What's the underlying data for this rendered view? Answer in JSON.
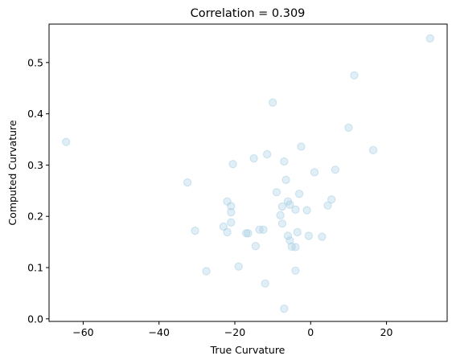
{
  "chart_data": {
    "type": "scatter",
    "title": "Correlation = 0.309",
    "xlabel": "True Curvature",
    "ylabel": "Computed Curvature",
    "xlim": [
      -69,
      36
    ],
    "ylim": [
      -0.005,
      0.575
    ],
    "xticks": [
      -60,
      -40,
      -20,
      0,
      20
    ],
    "yticks": [
      0.0,
      0.1,
      0.2,
      0.3,
      0.4,
      0.5
    ],
    "xtick_labels": [
      "−60",
      "−40",
      "−20",
      "0",
      "20"
    ],
    "ytick_labels": [
      "0.0",
      "0.1",
      "0.2",
      "0.3",
      "0.4",
      "0.5"
    ],
    "grid": false,
    "marker_color": "#a6cee3",
    "points": [
      {
        "x": 31.5,
        "y": 0.547
      },
      {
        "x": 11.5,
        "y": 0.475
      },
      {
        "x": -64.5,
        "y": 0.345
      },
      {
        "x": -10.0,
        "y": 0.422
      },
      {
        "x": 10.0,
        "y": 0.373
      },
      {
        "x": 16.5,
        "y": 0.329
      },
      {
        "x": -2.5,
        "y": 0.336
      },
      {
        "x": -11.5,
        "y": 0.321
      },
      {
        "x": -15.0,
        "y": 0.313
      },
      {
        "x": -7.0,
        "y": 0.307
      },
      {
        "x": -20.5,
        "y": 0.302
      },
      {
        "x": 6.5,
        "y": 0.291
      },
      {
        "x": 1.0,
        "y": 0.286
      },
      {
        "x": -6.5,
        "y": 0.271
      },
      {
        "x": -32.5,
        "y": 0.266
      },
      {
        "x": -3.0,
        "y": 0.244
      },
      {
        "x": -9.0,
        "y": 0.247
      },
      {
        "x": 5.5,
        "y": 0.233
      },
      {
        "x": -22.0,
        "y": 0.229
      },
      {
        "x": -6.0,
        "y": 0.229
      },
      {
        "x": -5.5,
        "y": 0.223
      },
      {
        "x": -21.0,
        "y": 0.22
      },
      {
        "x": 4.5,
        "y": 0.221
      },
      {
        "x": -7.5,
        "y": 0.219
      },
      {
        "x": -4.0,
        "y": 0.213
      },
      {
        "x": -1.0,
        "y": 0.212
      },
      {
        "x": -21.0,
        "y": 0.208
      },
      {
        "x": -8.0,
        "y": 0.202
      },
      {
        "x": -21.0,
        "y": 0.188
      },
      {
        "x": -7.5,
        "y": 0.186
      },
      {
        "x": -23.0,
        "y": 0.18
      },
      {
        "x": -13.5,
        "y": 0.174
      },
      {
        "x": -12.5,
        "y": 0.174
      },
      {
        "x": -30.5,
        "y": 0.172
      },
      {
        "x": -22.0,
        "y": 0.169
      },
      {
        "x": -3.5,
        "y": 0.169
      },
      {
        "x": -17.0,
        "y": 0.167
      },
      {
        "x": -16.5,
        "y": 0.167
      },
      {
        "x": -6.0,
        "y": 0.162
      },
      {
        "x": -0.5,
        "y": 0.162
      },
      {
        "x": 3.0,
        "y": 0.16
      },
      {
        "x": -5.5,
        "y": 0.153
      },
      {
        "x": -14.5,
        "y": 0.142
      },
      {
        "x": -5.0,
        "y": 0.141
      },
      {
        "x": -4.0,
        "y": 0.14
      },
      {
        "x": -19.0,
        "y": 0.102
      },
      {
        "x": -27.5,
        "y": 0.093
      },
      {
        "x": -4.0,
        "y": 0.094
      },
      {
        "x": -12.0,
        "y": 0.069
      },
      {
        "x": -7.0,
        "y": 0.02
      }
    ]
  }
}
